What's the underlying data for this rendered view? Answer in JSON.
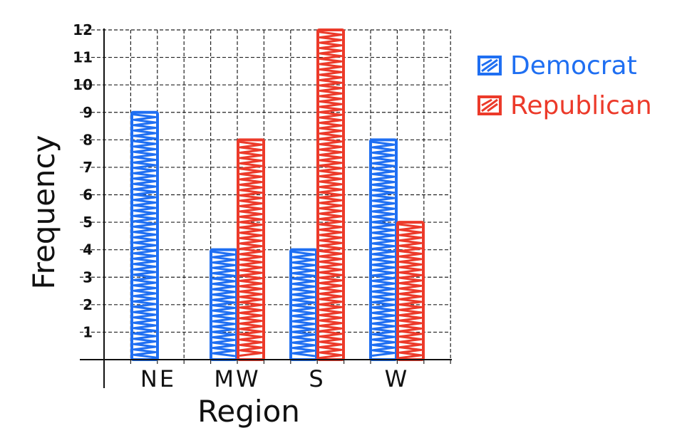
{
  "chart_data": {
    "type": "bar",
    "categories": [
      "NE",
      "MW",
      "S",
      "W"
    ],
    "series": [
      {
        "name": "Democrat",
        "values": [
          9,
          4,
          4,
          8
        ],
        "color": "#1f6ff2"
      },
      {
        "name": "Republican",
        "values": [
          0,
          8,
          12,
          5
        ],
        "color": "#ec3a2a"
      }
    ],
    "xlabel": "Region",
    "ylabel": "Frequency",
    "ylim": [
      0,
      12
    ],
    "yticks": [
      "1",
      "2",
      "3",
      "4",
      "5",
      "6",
      "7",
      "8",
      "9",
      "10",
      "11",
      "12"
    ],
    "grid": true,
    "legend_position": "top-right"
  }
}
